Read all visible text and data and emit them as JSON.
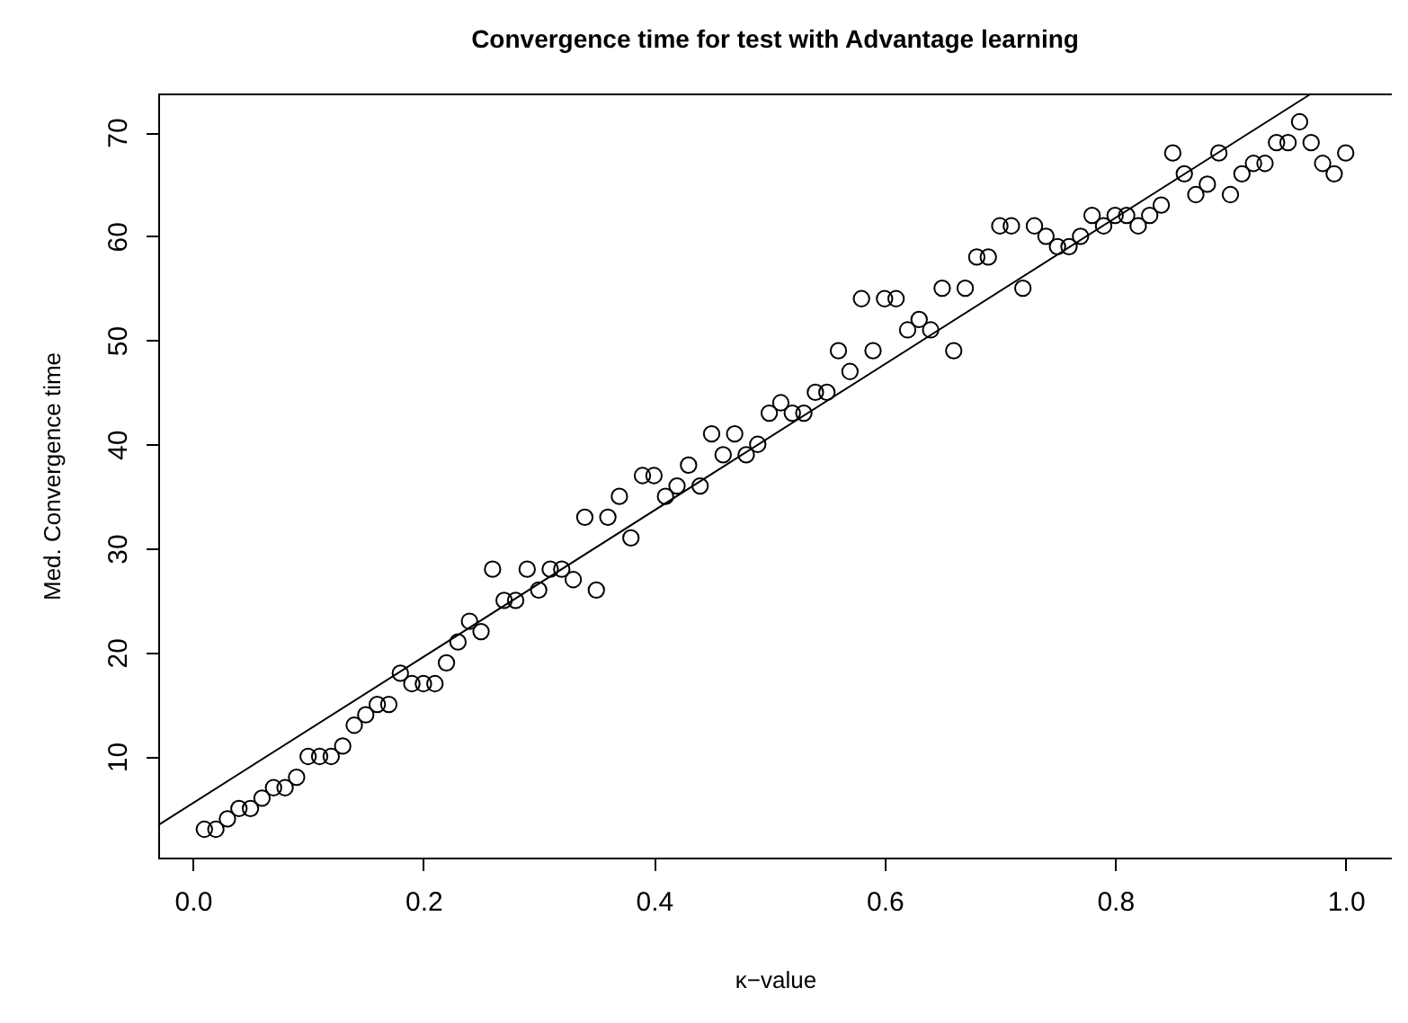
{
  "chart_data": {
    "type": "scatter",
    "title": "Convergence time for test with Advantage learning",
    "xlabel": "κ−value",
    "ylabel": "Med. Convergence time",
    "xlim": [
      -0.03,
      1.04
    ],
    "ylim": [
      0.28,
      73.72
    ],
    "xticks": [
      {
        "value": 0,
        "label": "0.0"
      },
      0.2,
      0.4,
      0.6,
      0.8,
      {
        "value": 1,
        "label": "1.0"
      }
    ],
    "yticks": [
      10,
      20,
      30,
      40,
      50,
      60,
      70
    ],
    "grid": false,
    "series": [
      {
        "color": "#000000",
        "marker": "circle",
        "x": [
          0.01,
          0.02,
          0.03,
          0.04,
          0.05,
          0.06,
          0.07,
          0.08,
          0.09,
          0.1,
          0.11,
          0.12,
          0.13,
          0.14,
          0.15,
          0.16,
          0.17,
          0.18,
          0.19,
          0.2,
          0.21,
          0.22,
          0.23,
          0.24,
          0.25,
          0.26,
          0.27,
          0.28,
          0.29,
          0.3,
          0.31,
          0.32,
          0.33,
          0.34,
          0.35,
          0.36,
          0.37,
          0.38,
          0.39,
          0.4,
          0.41,
          0.42,
          0.43,
          0.44,
          0.45,
          0.46,
          0.47,
          0.48,
          0.49,
          0.5,
          0.51,
          0.52,
          0.53,
          0.54,
          0.55,
          0.56,
          0.57,
          0.58,
          0.59,
          0.6,
          0.61,
          0.62,
          0.63,
          0.64,
          0.65,
          0.66,
          0.67,
          0.68,
          0.69,
          0.7,
          0.71,
          0.72,
          0.73,
          0.74,
          0.75,
          0.76,
          0.77,
          0.78,
          0.79,
          0.8,
          0.81,
          0.82,
          0.83,
          0.84,
          0.85,
          0.86,
          0.87,
          0.88,
          0.89,
          0.9,
          0.91,
          0.92,
          0.93,
          0.94,
          0.95,
          0.96,
          0.97,
          0.98,
          0.99,
          1.0
        ],
        "values": [
          3,
          3,
          4,
          5,
          5,
          6,
          7,
          7,
          8,
          10,
          10,
          10,
          11,
          13,
          14,
          15,
          15,
          18,
          17,
          17,
          17,
          19,
          21,
          23,
          22,
          28,
          25,
          25,
          28,
          26,
          28,
          28,
          27,
          33,
          26,
          33,
          35,
          31,
          37,
          37,
          35,
          36,
          38,
          36,
          41,
          39,
          41,
          39,
          40,
          43,
          44,
          43,
          43,
          45,
          45,
          49,
          47,
          54,
          49,
          54,
          54,
          51,
          52,
          51,
          55,
          49,
          55,
          58,
          58,
          61,
          61,
          55,
          61,
          60,
          59,
          59,
          60,
          62,
          61,
          62,
          62,
          61,
          62,
          63,
          68,
          66,
          64,
          65,
          68,
          64,
          66,
          67,
          67,
          69,
          69,
          71,
          69,
          67,
          66,
          68
        ]
      },
      {
        "type": "line",
        "color": "#000000",
        "line_style": "solid",
        "x": [
          -0.03,
          0.97
        ],
        "values": [
          3.4,
          73.7
        ]
      }
    ]
  }
}
